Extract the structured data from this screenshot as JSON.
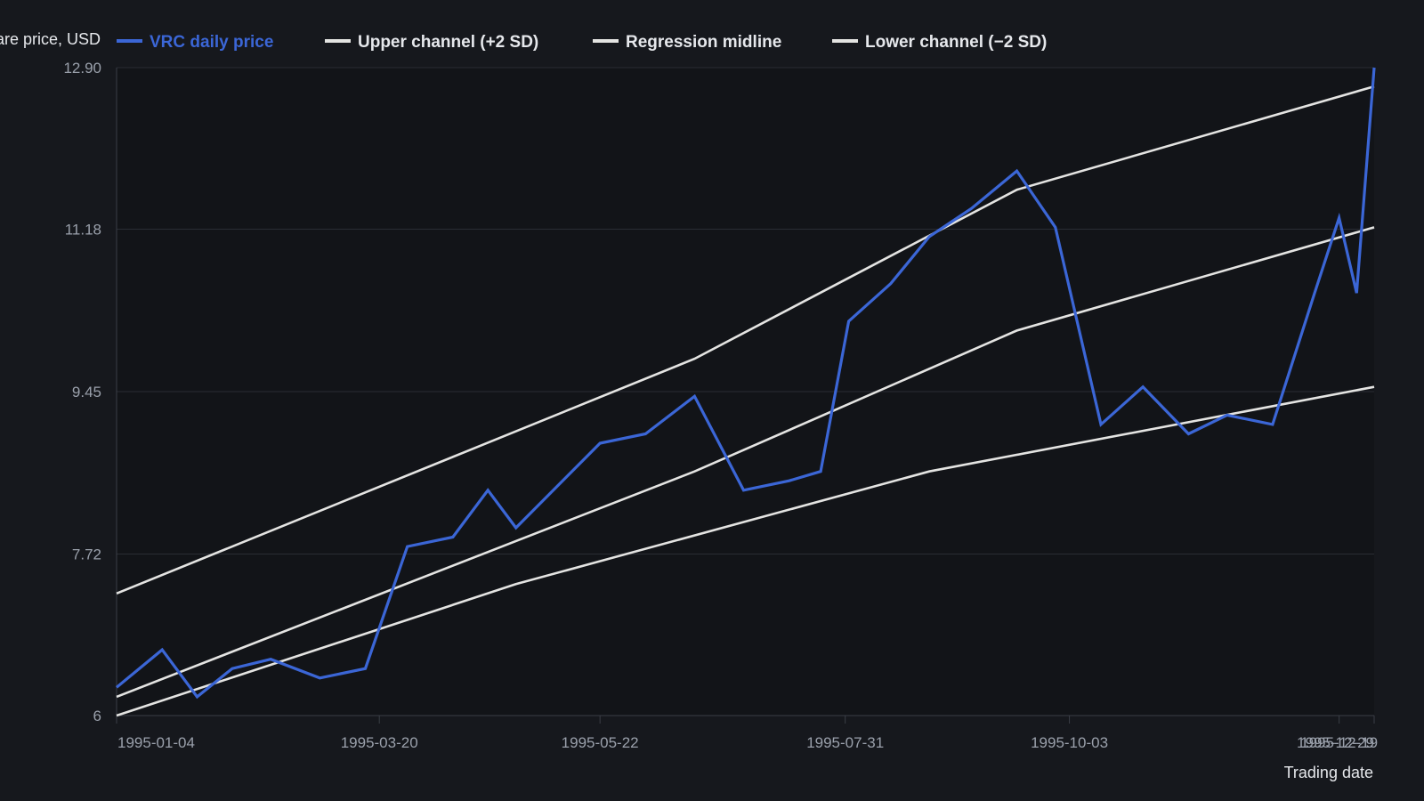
{
  "chart_data": {
    "type": "line",
    "title": "",
    "xlabel": "Trading date",
    "ylabel": "Share price, USD",
    "ylim": [
      6,
      12.9
    ],
    "xlim": [
      "1995-01-04",
      "1995-12-29"
    ],
    "grid": true,
    "legend_placement": "top",
    "y_ticks": [
      "6",
      "7.72",
      "9.45",
      "11.18",
      "12.90"
    ],
    "x_ticks": [
      "1995-01-04",
      "1995-03-20",
      "1995-05-22",
      "1995-07-31",
      "1995-10-03",
      "1995-12-19",
      "1995-12-29"
    ],
    "background": "#16181d",
    "series": [
      {
        "name": "VRC daily price",
        "color": "#3b66d6",
        "points": [
          [
            "1995-01-04",
            6.3
          ],
          [
            "1995-01-17",
            6.7
          ],
          [
            "1995-01-27",
            6.2
          ],
          [
            "1995-02-06",
            6.5
          ],
          [
            "1995-02-17",
            6.6
          ],
          [
            "1995-03-03",
            6.4
          ],
          [
            "1995-03-16",
            6.5
          ],
          [
            "1995-03-28",
            7.8
          ],
          [
            "1995-04-10",
            7.9
          ],
          [
            "1995-04-20",
            8.4
          ],
          [
            "1995-04-28",
            8.0
          ],
          [
            "1995-05-22",
            8.9
          ],
          [
            "1995-06-04",
            9.0
          ],
          [
            "1995-06-18",
            9.4
          ],
          [
            "1995-07-02",
            8.4
          ],
          [
            "1995-07-15",
            8.5
          ],
          [
            "1995-07-24",
            8.6
          ],
          [
            "1995-08-01",
            10.2
          ],
          [
            "1995-08-13",
            10.6
          ],
          [
            "1995-08-24",
            11.1
          ],
          [
            "1995-09-05",
            11.4
          ],
          [
            "1995-09-18",
            11.8
          ],
          [
            "1995-09-29",
            11.2
          ],
          [
            "1995-10-12",
            9.1
          ],
          [
            "1995-10-24",
            9.5
          ],
          [
            "1995-11-06",
            9.0
          ],
          [
            "1995-11-17",
            9.2
          ],
          [
            "1995-11-30",
            9.1
          ],
          [
            "1995-12-12",
            10.5
          ],
          [
            "1995-12-19",
            11.3
          ],
          [
            "1995-12-24",
            10.5
          ],
          [
            "1995-12-29",
            12.9
          ]
        ]
      },
      {
        "name": "Upper channel (+2 SD)",
        "color": "#e4e4e2",
        "points": [
          [
            "1995-01-04",
            7.3
          ],
          [
            "1995-06-18",
            9.8
          ],
          [
            "1995-09-18",
            11.6
          ],
          [
            "1995-12-29",
            12.7
          ]
        ]
      },
      {
        "name": "Regression midline",
        "color": "#e4e4e2",
        "points": [
          [
            "1995-01-04",
            6.2
          ],
          [
            "1995-06-18",
            8.6
          ],
          [
            "1995-09-18",
            10.1
          ],
          [
            "1995-12-29",
            11.2
          ]
        ]
      },
      {
        "name": "Lower channel (−2 SD)",
        "color": "#e4e4e2",
        "points": [
          [
            "1995-01-04",
            6.0
          ],
          [
            "1995-04-28",
            7.4
          ],
          [
            "1995-08-24",
            8.6
          ],
          [
            "1995-12-29",
            9.5
          ]
        ]
      }
    ]
  }
}
